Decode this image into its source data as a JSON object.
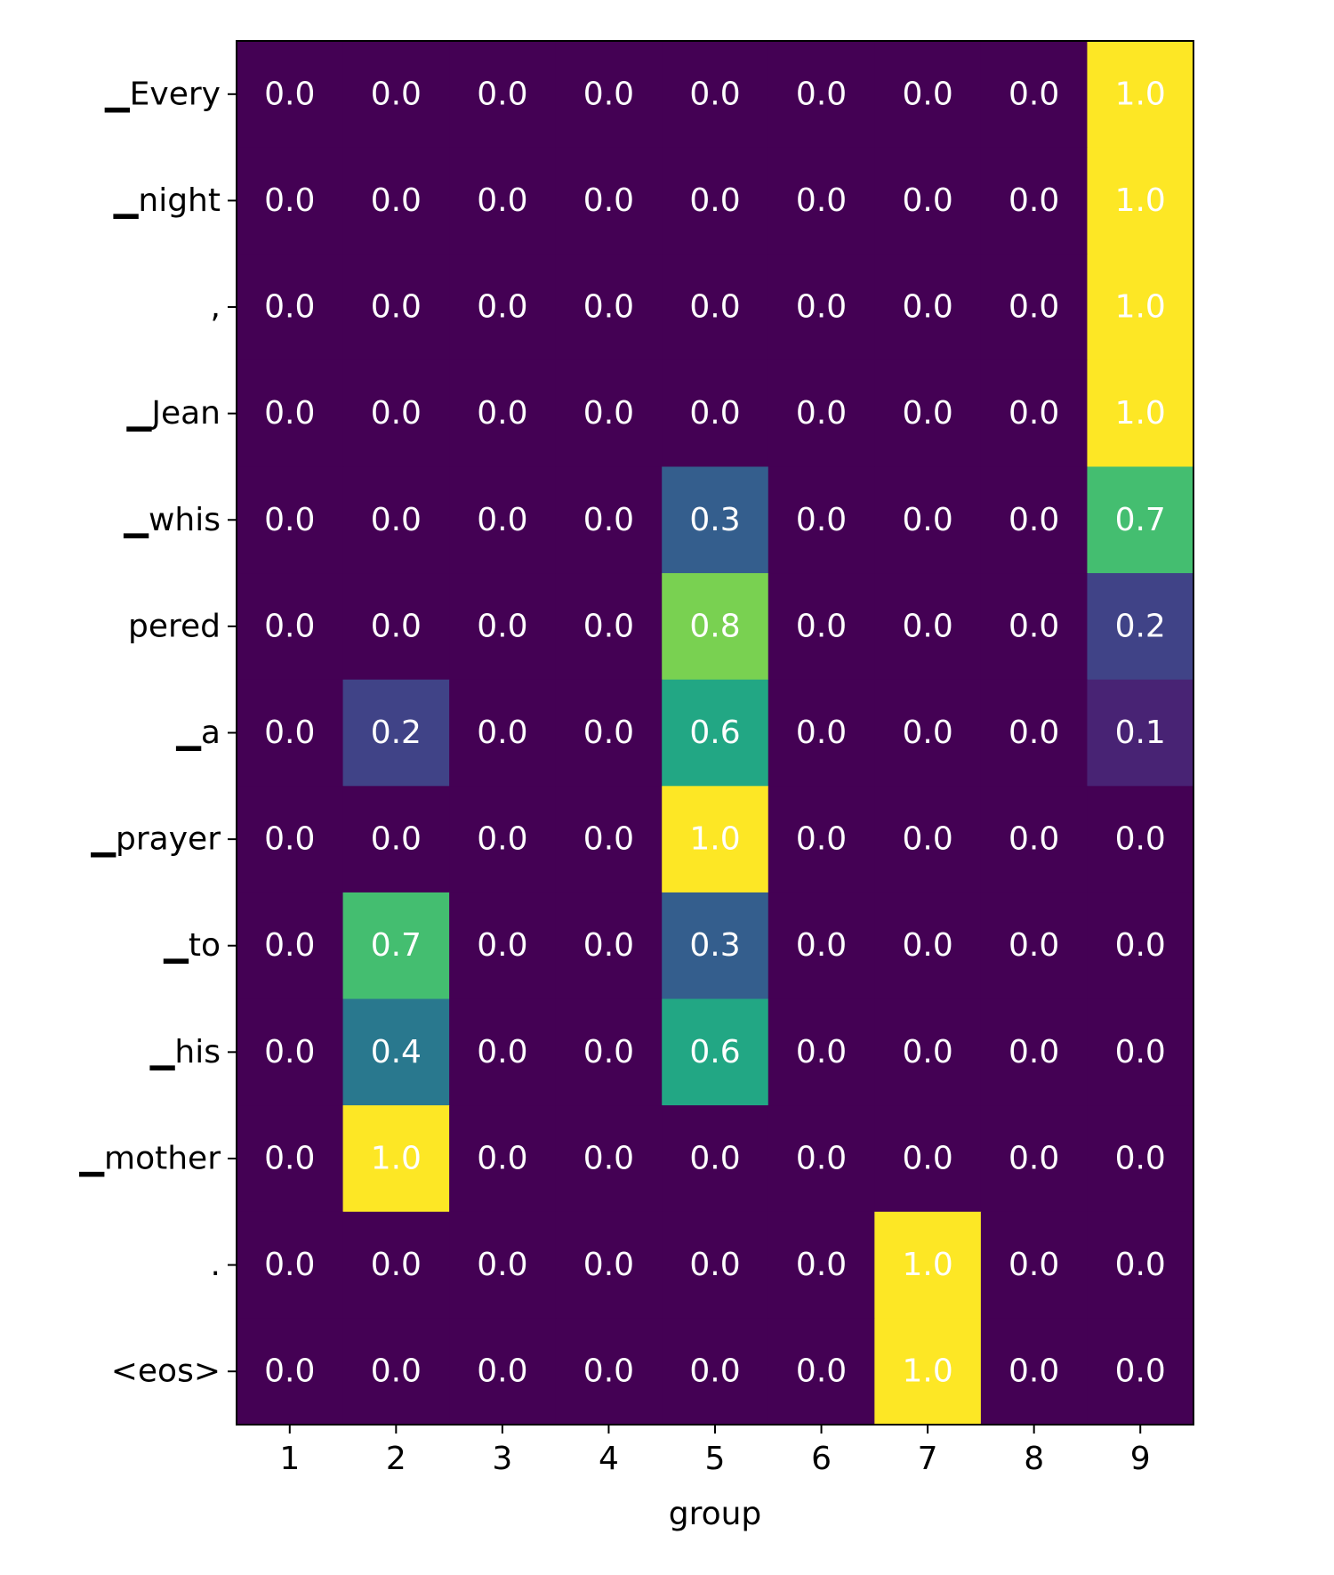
{
  "chart_data": {
    "type": "heatmap",
    "xlabel": "group",
    "ylabel": "",
    "x_categories": [
      "1",
      "2",
      "3",
      "4",
      "5",
      "6",
      "7",
      "8",
      "9"
    ],
    "y_categories": [
      "▁Every",
      "▁night",
      ",",
      "▁Jean",
      "▁whis",
      "pered",
      "▁a",
      "▁prayer",
      "▁to",
      "▁his",
      "▁mother",
      ".",
      "<eos>"
    ],
    "values": [
      [
        0.0,
        0.0,
        0.0,
        0.0,
        0.0,
        0.0,
        0.0,
        0.0,
        1.0
      ],
      [
        0.0,
        0.0,
        0.0,
        0.0,
        0.0,
        0.0,
        0.0,
        0.0,
        1.0
      ],
      [
        0.0,
        0.0,
        0.0,
        0.0,
        0.0,
        0.0,
        0.0,
        0.0,
        1.0
      ],
      [
        0.0,
        0.0,
        0.0,
        0.0,
        0.0,
        0.0,
        0.0,
        0.0,
        1.0
      ],
      [
        0.0,
        0.0,
        0.0,
        0.0,
        0.3,
        0.0,
        0.0,
        0.0,
        0.7
      ],
      [
        0.0,
        0.0,
        0.0,
        0.0,
        0.8,
        0.0,
        0.0,
        0.0,
        0.2
      ],
      [
        0.0,
        0.2,
        0.0,
        0.0,
        0.6,
        0.0,
        0.0,
        0.0,
        0.1
      ],
      [
        0.0,
        0.0,
        0.0,
        0.0,
        1.0,
        0.0,
        0.0,
        0.0,
        0.0
      ],
      [
        0.0,
        0.7,
        0.0,
        0.0,
        0.3,
        0.0,
        0.0,
        0.0,
        0.0
      ],
      [
        0.0,
        0.4,
        0.0,
        0.0,
        0.6,
        0.0,
        0.0,
        0.0,
        0.0
      ],
      [
        0.0,
        1.0,
        0.0,
        0.0,
        0.0,
        0.0,
        0.0,
        0.0,
        0.0
      ],
      [
        0.0,
        0.0,
        0.0,
        0.0,
        0.0,
        0.0,
        1.0,
        0.0,
        0.0
      ],
      [
        0.0,
        0.0,
        0.0,
        0.0,
        0.0,
        0.0,
        1.0,
        0.0,
        0.0
      ]
    ],
    "colormap": "viridis",
    "value_range": [
      0,
      1
    ],
    "grid": false,
    "legend": "none",
    "cell_label_color": "#ffffff"
  }
}
